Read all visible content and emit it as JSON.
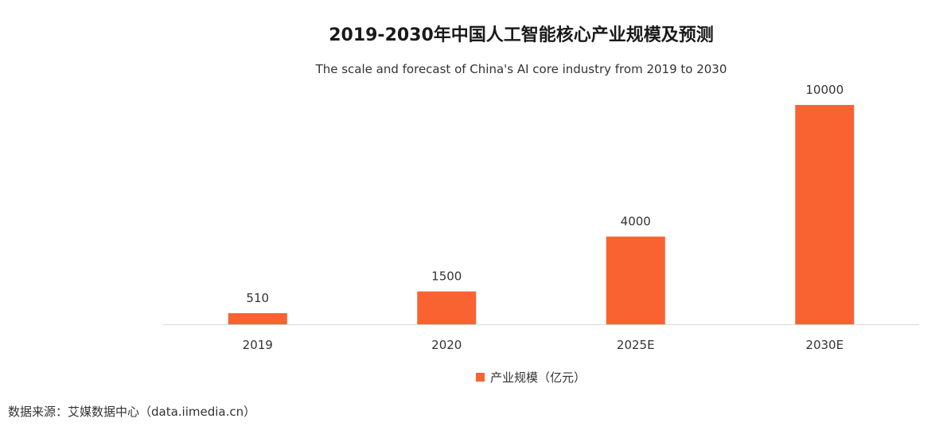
{
  "title": "2019-2030年中国人工智能核心产业规模及预测",
  "subtitle": "The scale and forecast of China's AI core industry from 2019 to 2030",
  "source": "数据来源：艾媒数据中心（data.iimedia.cn）",
  "colors": {
    "bar": "#F96332",
    "axis": "#d9d9d9"
  },
  "chart_data": {
    "type": "bar",
    "title": "2019-2030年中国人工智能核心产业规模及预测",
    "subtitle": "The scale and forecast of China's AI core industry from 2019 to 2030",
    "categories": [
      "2019",
      "2020",
      "2025E",
      "2030E"
    ],
    "series": [
      {
        "name": "产业规模（亿元）",
        "values": [
          510,
          1500,
          4000,
          10000
        ],
        "data_labels": [
          "510",
          "1500",
          "4000",
          "10000"
        ]
      }
    ],
    "xlabel": "",
    "ylabel": "",
    "ylim": [
      0,
      10000
    ],
    "grid": false,
    "legend_position": "bottom"
  }
}
